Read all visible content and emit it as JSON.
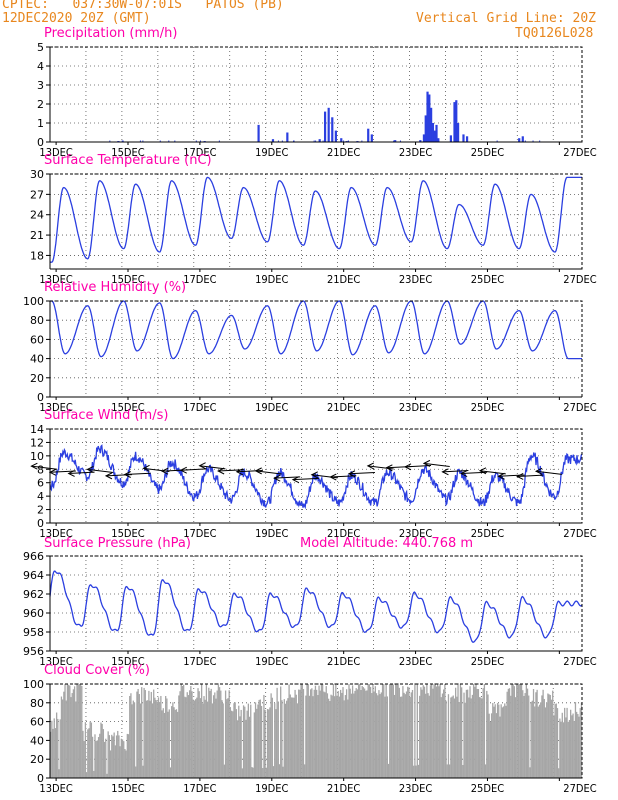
{
  "header": {
    "station": "CPTEC:   037:30W-07:01S   PATOS (PB)",
    "run": "12DEC2020 20Z (GMT)",
    "grid_note": "Vertical Grid Line: 20Z",
    "code": "TQ0126L028"
  },
  "colors": {
    "title": "#ff00aa",
    "header": "#e8871e",
    "series": "#2b3fe0",
    "wind_arrow": "#000000",
    "cloud": "#a6a6a6"
  },
  "chart_data": [
    {
      "id": "precip",
      "type": "bar",
      "title": "Precipitation (mm/h)",
      "x_unit": "days since 12DEC2020 20Z",
      "xlim": [
        0,
        14.8
      ],
      "x_ticks": [
        "13DEC",
        "15DEC",
        "17DEC",
        "19DEC",
        "21DEC",
        "23DEC",
        "25DEC",
        "27DEC"
      ],
      "ylim": [
        0,
        5
      ],
      "y_ticks": [
        0,
        1,
        2,
        3,
        4,
        5
      ],
      "grid": true,
      "points": [
        [
          1.9,
          0.05
        ],
        [
          4.3,
          0.05
        ],
        [
          5.8,
          0.9
        ],
        [
          6.2,
          0.15
        ],
        [
          6.6,
          0.5
        ],
        [
          7.5,
          0.15
        ],
        [
          7.65,
          1.6
        ],
        [
          7.75,
          1.8
        ],
        [
          7.85,
          1.3
        ],
        [
          7.95,
          0.6
        ],
        [
          8.1,
          0.2
        ],
        [
          8.25,
          0.05
        ],
        [
          8.55,
          0.05
        ],
        [
          8.85,
          0.7
        ],
        [
          8.95,
          0.4
        ],
        [
          9.6,
          0.1
        ],
        [
          10.3,
          0.1
        ],
        [
          10.4,
          0.4
        ],
        [
          10.45,
          1.4
        ],
        [
          10.5,
          2.65
        ],
        [
          10.55,
          2.5
        ],
        [
          10.6,
          1.8
        ],
        [
          10.65,
          1.0
        ],
        [
          10.7,
          0.6
        ],
        [
          10.75,
          0.9
        ],
        [
          10.8,
          0.2
        ],
        [
          11.15,
          0.35
        ],
        [
          11.25,
          2.1
        ],
        [
          11.3,
          2.2
        ],
        [
          11.35,
          1.0
        ],
        [
          11.5,
          0.4
        ],
        [
          11.6,
          0.3
        ],
        [
          13.05,
          0.2
        ],
        [
          13.15,
          0.3
        ]
      ]
    },
    {
      "id": "temp",
      "type": "line",
      "title": "Surface Temperature (nC)",
      "xlim": [
        0,
        14.8
      ],
      "ylim": [
        16,
        30
      ],
      "y_ticks": [
        18,
        21,
        24,
        27,
        30
      ],
      "grid": true,
      "x_ticks": [
        "13DEC",
        "15DEC",
        "17DEC",
        "19DEC",
        "21DEC",
        "23DEC",
        "25DEC",
        "27DEC"
      ],
      "min_values": [
        17.0,
        17.5,
        19.0,
        18.5,
        19.5,
        20.5,
        20.0,
        19.5,
        19.0,
        19.5,
        20.0,
        19.0,
        19.5,
        19.0,
        18.5
      ],
      "max_values": [
        28.0,
        29.0,
        28.5,
        29.0,
        29.5,
        28.0,
        29.0,
        27.5,
        28.0,
        28.0,
        29.0,
        25.5,
        28.5,
        27.0,
        29.5
      ]
    },
    {
      "id": "rh",
      "type": "line",
      "title": "Relative Humidity (%)",
      "xlim": [
        0,
        14.8
      ],
      "ylim": [
        0,
        100
      ],
      "y_ticks": [
        0,
        20,
        40,
        60,
        80,
        100
      ],
      "grid": true,
      "x_ticks": [
        "13DEC",
        "15DEC",
        "17DEC",
        "19DEC",
        "21DEC",
        "23DEC",
        "25DEC",
        "27DEC"
      ],
      "min_values": [
        45,
        42,
        48,
        40,
        45,
        50,
        45,
        48,
        44,
        46,
        45,
        55,
        50,
        48,
        40
      ],
      "max_values": [
        100,
        95,
        100,
        98,
        90,
        85,
        95,
        100,
        100,
        95,
        100,
        100,
        100,
        90,
        90
      ]
    },
    {
      "id": "wind",
      "type": "line",
      "title": "Surface Wind (m/s)",
      "xlim": [
        0,
        14.8
      ],
      "ylim": [
        0,
        14
      ],
      "y_ticks": [
        0,
        2,
        4,
        6,
        8,
        10,
        12,
        14
      ],
      "grid": true,
      "x_ticks": [
        "13DEC",
        "15DEC",
        "17DEC",
        "19DEC",
        "21DEC",
        "23DEC",
        "25DEC",
        "27DEC"
      ],
      "min_values": [
        5.5,
        7.0,
        6.0,
        5.0,
        4.0,
        3.5,
        3.0,
        2.5,
        3.0,
        3.0,
        3.5,
        3.5,
        3.0,
        3.0,
        4.0
      ],
      "max_values": [
        10.5,
        11.0,
        10.0,
        9.0,
        8.0,
        7.5,
        7.5,
        7.0,
        7.0,
        7.5,
        8.0,
        7.5,
        7.0,
        10.0,
        9.5
      ],
      "arrows": "easterly, pointing west, along ~7-8 m/s"
    },
    {
      "id": "pressure",
      "type": "line",
      "title": "Surface Pressure (hPa)",
      "subtitle": "Model Altitude: 440.768 m",
      "xlim": [
        0,
        14.8
      ],
      "ylim": [
        956,
        966
      ],
      "y_ticks": [
        956,
        958,
        960,
        962,
        964,
        966
      ],
      "grid": true,
      "x_ticks": [
        "13DEC",
        "15DEC",
        "17DEC",
        "19DEC",
        "21DEC",
        "23DEC",
        "25DEC",
        "27DEC"
      ],
      "day_values": [
        964.5,
        963.0,
        962.8,
        963.5,
        962.5,
        962.0,
        962.0,
        962.5,
        962.0,
        961.5,
        962.0,
        961.5,
        961.0,
        961.5,
        961.0
      ],
      "night_values": [
        959.0,
        958.5,
        958.0,
        957.5,
        958.0,
        958.5,
        958.0,
        958.5,
        958.5,
        958.0,
        958.5,
        958.0,
        957.0,
        957.5,
        957.5
      ]
    },
    {
      "id": "cloud",
      "type": "bar",
      "title": "Cloud Cover (%)",
      "xlim": [
        0,
        14.8
      ],
      "ylim": [
        0,
        100
      ],
      "y_ticks": [
        0,
        20,
        40,
        60,
        80,
        100
      ],
      "grid": true,
      "x_ticks": [
        "13DEC",
        "15DEC",
        "17DEC",
        "19DEC",
        "21DEC",
        "23DEC",
        "25DEC",
        "27DEC"
      ],
      "segments": [
        [
          0.0,
          0.3,
          60
        ],
        [
          0.3,
          0.9,
          92
        ],
        [
          0.9,
          1.5,
          50
        ],
        [
          1.5,
          2.2,
          40
        ],
        [
          2.2,
          3.0,
          88
        ],
        [
          3.0,
          3.6,
          80
        ],
        [
          3.6,
          4.2,
          92
        ],
        [
          4.2,
          5.0,
          90
        ],
        [
          5.0,
          5.6,
          70
        ],
        [
          5.6,
          6.3,
          80
        ],
        [
          6.3,
          7.0,
          90
        ],
        [
          7.0,
          7.7,
          98
        ],
        [
          7.7,
          8.3,
          90
        ],
        [
          8.3,
          9.0,
          98
        ],
        [
          9.0,
          10.0,
          97
        ],
        [
          10.0,
          11.0,
          97
        ],
        [
          11.0,
          11.6,
          90
        ],
        [
          11.6,
          12.2,
          95
        ],
        [
          12.2,
          12.7,
          70
        ],
        [
          12.7,
          13.3,
          97
        ],
        [
          13.3,
          14.0,
          85
        ],
        [
          14.0,
          14.8,
          70
        ]
      ]
    }
  ]
}
